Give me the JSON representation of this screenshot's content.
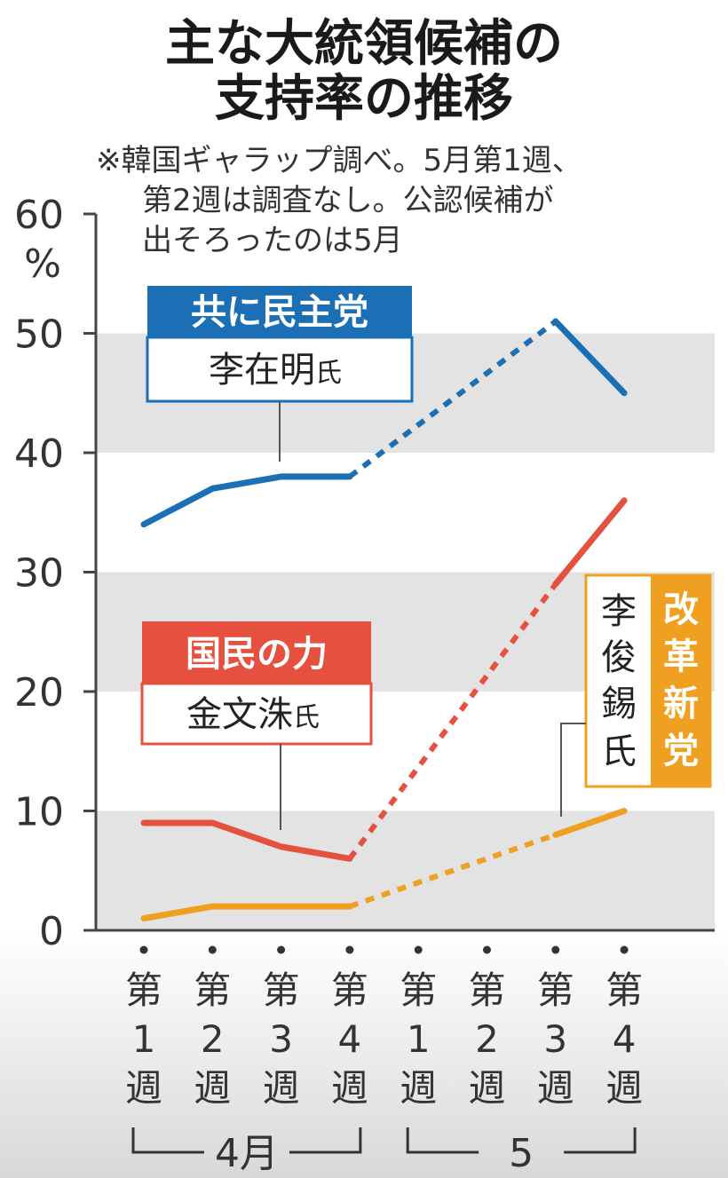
{
  "title": [
    "主な大統領候補の",
    "支持率の推移"
  ],
  "note": [
    "※韓国ギャラップ調べ。5月第1週、",
    "第2週は調査なし。公認候補が",
    "出そろったのは5月"
  ],
  "chart_data": {
    "type": "line",
    "ylabel": "%",
    "ylim": [
      0,
      60
    ],
    "yticks": [
      0,
      10,
      20,
      30,
      40,
      50,
      60
    ],
    "categories": [
      "第1週",
      "第2週",
      "第3週",
      "第4週",
      "第1週",
      "第2週",
      "第3週",
      "第4週"
    ],
    "month_groups": [
      {
        "label": "4月",
        "from": 0,
        "to": 3
      },
      {
        "label": "5",
        "from": 4,
        "to": 7
      }
    ],
    "series": [
      {
        "name": "共に民主党 李在明氏",
        "party": "共に民主党",
        "candidate": "李在明",
        "suffix": "氏",
        "color": "#1a6fb5",
        "values": [
          34,
          37,
          38,
          38,
          null,
          null,
          51,
          45
        ]
      },
      {
        "name": "国民の力 金文洙氏",
        "party": "国民の力",
        "candidate": "金文洙",
        "suffix": "氏",
        "color": "#e5503f",
        "values": [
          9,
          9,
          7,
          6,
          null,
          null,
          29,
          36
        ]
      },
      {
        "name": "改革新党 李俊錫氏",
        "party": "改革新党",
        "candidate": "李俊錫",
        "suffix": "氏",
        "color": "#f0a020",
        "values": [
          1,
          2,
          2,
          2,
          null,
          null,
          8,
          10
        ]
      }
    ],
    "grid": "alternating bands",
    "legend": "inline labels"
  }
}
